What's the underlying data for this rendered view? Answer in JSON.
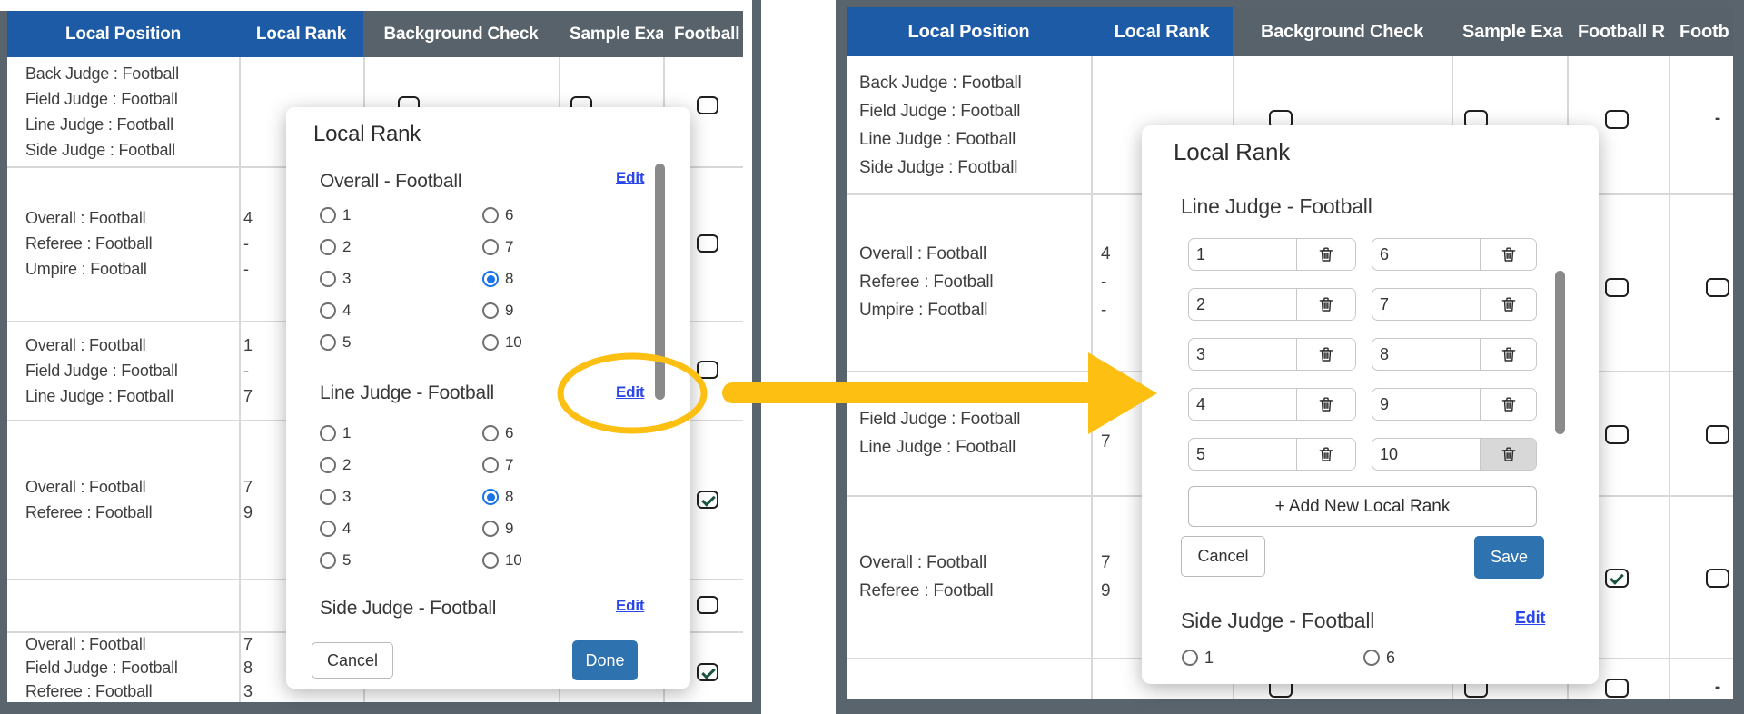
{
  "colors": {
    "header_blue": "#1D5BA7",
    "header_gray": "#57626B",
    "frame_gray": "#59646D",
    "button_blue": "#2E72B0",
    "link_blue": "#2946EC",
    "radio_blue": "#1A73E8",
    "check_green": "#1A5440",
    "annotation_yellow": "#FCBF12"
  },
  "left_panel": {
    "header": [
      "Local Position",
      "Local Rank",
      "Background Check",
      "Sample Exa",
      "Football"
    ],
    "rows": [
      {
        "positions": [
          "Back Judge : Football",
          "Field Judge : Football",
          "Line Judge : Football",
          "Side Judge : Football"
        ],
        "ranks": [],
        "checks": {
          "bg": "unchecked",
          "sample": "unchecked",
          "football": "unchecked"
        }
      },
      {
        "positions": [
          "Overall : Football",
          "Referee : Football",
          "Umpire : Football"
        ],
        "ranks": [
          "4",
          "-",
          "-"
        ],
        "checks": {
          "football": "unchecked"
        }
      },
      {
        "positions": [
          "Overall : Football",
          "Field Judge : Football",
          "Line Judge : Football"
        ],
        "ranks": [
          "1",
          "-",
          "7"
        ],
        "checks": {
          "football": "unchecked"
        }
      },
      {
        "positions": [
          "Overall : Football",
          "Referee : Football"
        ],
        "ranks": [
          "7",
          "9"
        ],
        "checks": {
          "football": "checked"
        }
      },
      {
        "positions": [],
        "ranks": [],
        "checks": {
          "football": "unchecked"
        }
      },
      {
        "positions": [
          "Overall : Football",
          "Field Judge : Football",
          "Referee : Football"
        ],
        "ranks": [
          "7",
          "8",
          "3"
        ],
        "checks": {
          "football": "checked"
        }
      }
    ],
    "modal": {
      "title": "Local Rank",
      "sections": [
        {
          "heading": "Overall - Football",
          "edit_label": "Edit",
          "options": [
            "1",
            "2",
            "3",
            "4",
            "5",
            "6",
            "7",
            "8",
            "9",
            "10"
          ],
          "selected": "8"
        },
        {
          "heading": "Line Judge - Football",
          "edit_label": "Edit",
          "options": [
            "1",
            "2",
            "3",
            "4",
            "5",
            "6",
            "7",
            "8",
            "9",
            "10"
          ],
          "selected": "8"
        },
        {
          "heading": "Side Judge - Football",
          "edit_label": "Edit"
        }
      ],
      "cancel_label": "Cancel",
      "done_label": "Done"
    }
  },
  "right_panel": {
    "header": [
      "Local Position",
      "Local Rank",
      "Background Check",
      "Sample Exa",
      "Football R",
      "Footb"
    ],
    "rows": [
      {
        "positions": [
          "Back Judge : Football",
          "Field Judge : Football",
          "Line Judge : Football",
          "Side Judge : Football"
        ],
        "ranks": [],
        "checks": {
          "bg": "unchecked",
          "sample": "unchecked",
          "football": "unchecked",
          "footb": "dash"
        }
      },
      {
        "positions": [
          "Overall : Football",
          "Referee : Football",
          "Umpire : Football"
        ],
        "ranks": [
          "4",
          "-",
          "-"
        ],
        "checks": {
          "football": "unchecked",
          "footb": "unchecked"
        }
      },
      {
        "positions": [
          "Field Judge : Football",
          "Line Judge : Football"
        ],
        "ranks": [
          "",
          "7"
        ],
        "checks": {
          "football": "unchecked",
          "footb": "unchecked"
        }
      },
      {
        "positions": [
          "Overall : Football",
          "Referee : Football"
        ],
        "ranks": [
          "7",
          "9"
        ],
        "checks": {
          "football": "checked",
          "footb": "unchecked"
        }
      },
      {
        "positions": [],
        "ranks": [],
        "checks": {
          "bg": "unchecked",
          "sample": "unchecked",
          "football": "unchecked",
          "footb": "dash"
        }
      }
    ],
    "modal": {
      "title": "Local Rank",
      "edit_section": {
        "heading": "Line Judge - Football",
        "values": [
          "1",
          "2",
          "3",
          "4",
          "5",
          "6",
          "7",
          "8",
          "9",
          "10"
        ],
        "highlighted_delete_index": 9,
        "add_label": "+ Add New Local Rank",
        "cancel_label": "Cancel",
        "save_label": "Save"
      },
      "next_section": {
        "heading": "Side Judge - Football",
        "edit_label": "Edit",
        "visible_options": [
          "1",
          "6"
        ]
      }
    }
  }
}
